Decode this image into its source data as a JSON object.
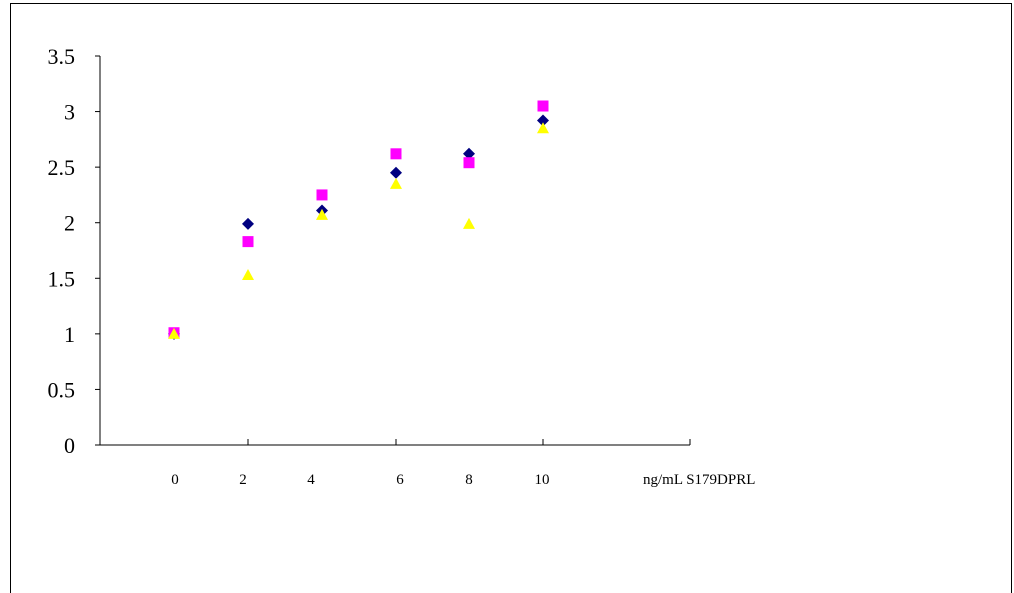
{
  "chart_data": {
    "type": "scatter",
    "title": "",
    "xlabel": "ng/mL S179DPRL",
    "ylabel": "",
    "ylim": [
      0,
      3.5
    ],
    "y_ticks": [
      "0",
      "0.5",
      "1",
      "1.5",
      "2",
      "2.5",
      "3",
      "3.5"
    ],
    "x_tick_labels": [
      "0",
      "2",
      "4",
      "6",
      "8",
      "10"
    ],
    "grid": false,
    "legend": "none",
    "series": [
      {
        "marker": "diamond",
        "color": "#000080",
        "points": [
          [
            0,
            1.0
          ],
          [
            2,
            1.99
          ],
          [
            4,
            2.11
          ],
          [
            6,
            2.45
          ],
          [
            8,
            2.62
          ],
          [
            10,
            2.92
          ]
        ]
      },
      {
        "marker": "square",
        "color": "#FF00FF",
        "points": [
          [
            0,
            1.01
          ],
          [
            2,
            1.83
          ],
          [
            4,
            2.25
          ],
          [
            6,
            2.62
          ],
          [
            8,
            2.54
          ],
          [
            10,
            3.05
          ]
        ]
      },
      {
        "marker": "triangle",
        "color": "#FFFF00",
        "points": [
          [
            0,
            1.0
          ],
          [
            2,
            1.53
          ],
          [
            4,
            2.07
          ],
          [
            6,
            2.35
          ],
          [
            8,
            1.99
          ],
          [
            10,
            2.85
          ]
        ]
      }
    ]
  }
}
